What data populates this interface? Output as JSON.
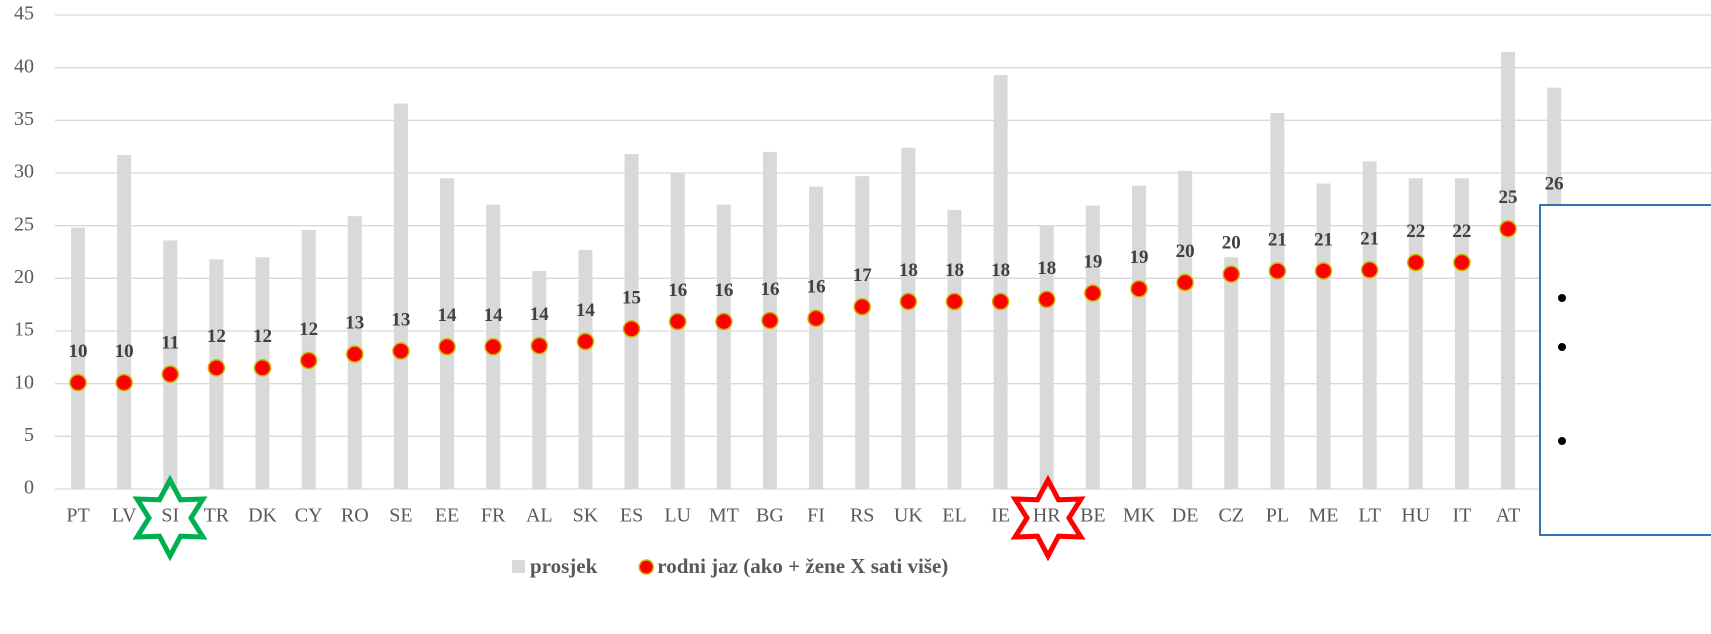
{
  "chart_data": {
    "type": "bar-dot",
    "categories": [
      "PT",
      "LV",
      "SI",
      "TR",
      "DK",
      "CY",
      "RO",
      "SE",
      "EE",
      "FR",
      "AL",
      "SK",
      "ES",
      "LU",
      "MT",
      "BG",
      "FI",
      "RS",
      "UK",
      "EL",
      "IE",
      "HR",
      "BE",
      "MK",
      "DE",
      "CZ",
      "PL",
      "ME",
      "LT",
      "HU",
      "IT",
      "AT",
      null
    ],
    "series": [
      {
        "name": "prosjek",
        "color": "#d9d9d9",
        "kind": "bar",
        "values": [
          24.8,
          31.7,
          23.6,
          21.8,
          22,
          24.6,
          25.9,
          36.6,
          29.5,
          27,
          20.7,
          22.7,
          31.8,
          30,
          27,
          32,
          28.7,
          29.7,
          32.4,
          26.5,
          39.3,
          25,
          26.9,
          28.8,
          30.2,
          22,
          35.7,
          29,
          31.1,
          29.5,
          29.5,
          41.5,
          38.1
        ]
      },
      {
        "name": "rodni jaz (ako + žene X sati više)",
        "color": "#ff0000",
        "kind": "dot",
        "values": [
          10.1,
          10.1,
          10.9,
          11.5,
          11.5,
          12.2,
          12.8,
          13.1,
          13.5,
          13.5,
          13.6,
          14,
          15.2,
          15.9,
          15.9,
          16,
          16.2,
          17.3,
          17.8,
          17.8,
          17.8,
          18,
          18.6,
          19,
          19.6,
          20.4,
          20.7,
          20.7,
          20.8,
          21.5,
          21.5,
          24.7,
          26
        ],
        "value_labels": [
          "10",
          "10",
          "11",
          "12",
          "12",
          "12",
          "13",
          "13",
          "14",
          "14",
          "14",
          "14",
          "15",
          "16",
          "16",
          "16",
          "16",
          "17",
          "18",
          "18",
          "18",
          "18",
          "19",
          "19",
          "20",
          "20",
          "21",
          "21",
          "21",
          "22",
          "22",
          "25",
          "26"
        ]
      }
    ],
    "ylim": [
      0,
      45
    ],
    "yticks": [
      0,
      5,
      10,
      15,
      20,
      25,
      30,
      35,
      40,
      45
    ],
    "grid": true,
    "legend": "bottom"
  }
}
